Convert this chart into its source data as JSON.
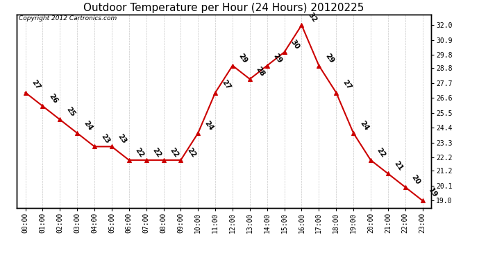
{
  "title": "Outdoor Temperature per Hour (24 Hours) 20120225",
  "copyright": "Copyright 2012 Cartronics.com",
  "hours": [
    "00:00",
    "01:00",
    "02:00",
    "03:00",
    "04:00",
    "05:00",
    "06:00",
    "07:00",
    "08:00",
    "09:00",
    "10:00",
    "11:00",
    "12:00",
    "13:00",
    "14:00",
    "15:00",
    "16:00",
    "17:00",
    "18:00",
    "19:00",
    "20:00",
    "21:00",
    "22:00",
    "23:00"
  ],
  "temps": [
    27,
    26,
    25,
    24,
    23,
    23,
    22,
    22,
    22,
    22,
    24,
    27,
    29,
    28,
    29,
    30,
    32,
    29,
    27,
    24,
    22,
    21,
    20,
    19
  ],
  "right_yticks": [
    19.0,
    20.1,
    21.2,
    22.2,
    23.3,
    24.4,
    25.5,
    26.6,
    27.7,
    28.8,
    29.8,
    30.9,
    32.0
  ],
  "ymin": 18.45,
  "ymax": 32.8,
  "line_color": "#cc0000",
  "bg_color": "#ffffff",
  "grid_color": "#c8c8c8",
  "title_fontsize": 11,
  "tick_fontsize": 7,
  "copyright_fontsize": 6.5,
  "annot_fontsize": 7.5
}
